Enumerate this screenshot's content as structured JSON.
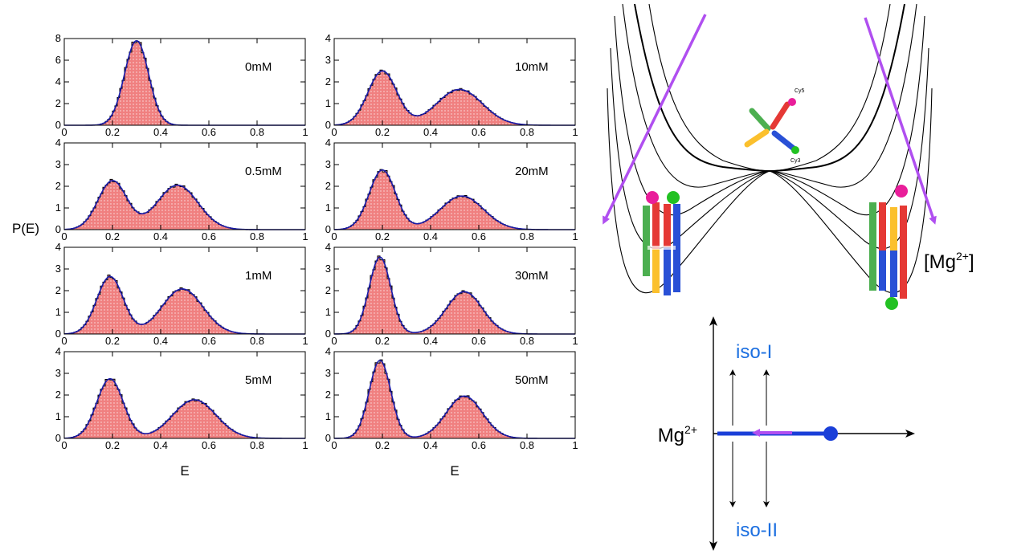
{
  "figure": {
    "ylabel": "P(E)",
    "xlabel_left": "E",
    "xlabel_right": "E",
    "mg_conc_label": "[Mg",
    "mg_conc_sup": "2+",
    "mg_conc_close": "]",
    "phase_axis_label": "Mg",
    "phase_axis_sup": "2+",
    "phase_top": "iso-I",
    "phase_bottom": "iso-II",
    "colors": {
      "histogram_fill": "#f08080",
      "fit_line": "#1a1aa8",
      "hist_edge": "#000000",
      "arrow": "#b04ff0",
      "label_blue": "#1c6fe0",
      "phase_dot": "#1a3fd8"
    }
  },
  "chart_data": [
    {
      "type": "area",
      "title": "0mM",
      "xlim": [
        0,
        1
      ],
      "ylim": [
        0,
        8
      ],
      "x_ticks": [
        "0",
        "0.2",
        "0.4",
        "0.6",
        "0.8",
        "1"
      ],
      "y_ticks": [
        "0",
        "2",
        "4",
        "6",
        "8"
      ],
      "components": [
        {
          "mean": 0.3,
          "sd": 0.05,
          "height": 7.8
        }
      ]
    },
    {
      "type": "area",
      "title": "10mM",
      "xlim": [
        0,
        1
      ],
      "ylim": [
        0,
        4
      ],
      "x_ticks": [
        "0",
        "0.2",
        "0.4",
        "0.6",
        "0.8",
        "1"
      ],
      "y_ticks": [
        "0",
        "1",
        "2",
        "3",
        "4"
      ],
      "components": [
        {
          "mean": 0.2,
          "sd": 0.06,
          "height": 2.5
        },
        {
          "mean": 0.52,
          "sd": 0.095,
          "height": 1.65
        }
      ]
    },
    {
      "type": "area",
      "title": "0.5mM",
      "xlim": [
        0,
        1
      ],
      "ylim": [
        0,
        4
      ],
      "x_ticks": [
        "0",
        "0.2",
        "0.4",
        "0.6",
        "0.8",
        "1"
      ],
      "y_ticks": [
        "0",
        "1",
        "2",
        "3",
        "4"
      ],
      "components": [
        {
          "mean": 0.2,
          "sd": 0.06,
          "height": 2.25
        },
        {
          "mean": 0.47,
          "sd": 0.085,
          "height": 2.05
        }
      ]
    },
    {
      "type": "area",
      "title": "20mM",
      "xlim": [
        0,
        1
      ],
      "ylim": [
        0,
        4
      ],
      "x_ticks": [
        "0",
        "0.2",
        "0.4",
        "0.6",
        "0.8",
        "1"
      ],
      "y_ticks": [
        "0",
        "1",
        "2",
        "3",
        "4"
      ],
      "components": [
        {
          "mean": 0.2,
          "sd": 0.055,
          "height": 2.75
        },
        {
          "mean": 0.53,
          "sd": 0.09,
          "height": 1.55
        }
      ]
    },
    {
      "type": "area",
      "title": "1mM",
      "xlim": [
        0,
        1
      ],
      "ylim": [
        0,
        4
      ],
      "x_ticks": [
        "0",
        "0.2",
        "0.4",
        "0.6",
        "0.8",
        "1"
      ],
      "y_ticks": [
        "0",
        "1",
        "2",
        "3",
        "4"
      ],
      "components": [
        {
          "mean": 0.19,
          "sd": 0.055,
          "height": 2.65
        },
        {
          "mean": 0.49,
          "sd": 0.085,
          "height": 2.08
        }
      ]
    },
    {
      "type": "area",
      "title": "30mM",
      "xlim": [
        0,
        1
      ],
      "ylim": [
        0,
        4
      ],
      "x_ticks": [
        "0",
        "0.2",
        "0.4",
        "0.6",
        "0.8",
        "1"
      ],
      "y_ticks": [
        "0",
        "1",
        "2",
        "3",
        "4"
      ],
      "components": [
        {
          "mean": 0.19,
          "sd": 0.045,
          "height": 3.55
        },
        {
          "mean": 0.54,
          "sd": 0.075,
          "height": 1.95
        }
      ]
    },
    {
      "type": "area",
      "title": "5mM",
      "xlim": [
        0,
        1
      ],
      "ylim": [
        0,
        4
      ],
      "x_ticks": [
        "0",
        "0.2",
        "0.4",
        "0.6",
        "0.8",
        "1"
      ],
      "y_ticks": [
        "0",
        "1",
        "2",
        "3",
        "4"
      ],
      "components": [
        {
          "mean": 0.19,
          "sd": 0.055,
          "height": 2.75
        },
        {
          "mean": 0.54,
          "sd": 0.09,
          "height": 1.78
        }
      ]
    },
    {
      "type": "area",
      "title": "50mM",
      "xlim": [
        0,
        1
      ],
      "ylim": [
        0,
        4
      ],
      "x_ticks": [
        "0",
        "0.2",
        "0.4",
        "0.6",
        "0.8",
        "1"
      ],
      "y_ticks": [
        "0",
        "1",
        "2",
        "3",
        "4"
      ],
      "components": [
        {
          "mean": 0.19,
          "sd": 0.045,
          "height": 3.6
        },
        {
          "mean": 0.54,
          "sd": 0.075,
          "height": 1.95
        }
      ]
    }
  ]
}
